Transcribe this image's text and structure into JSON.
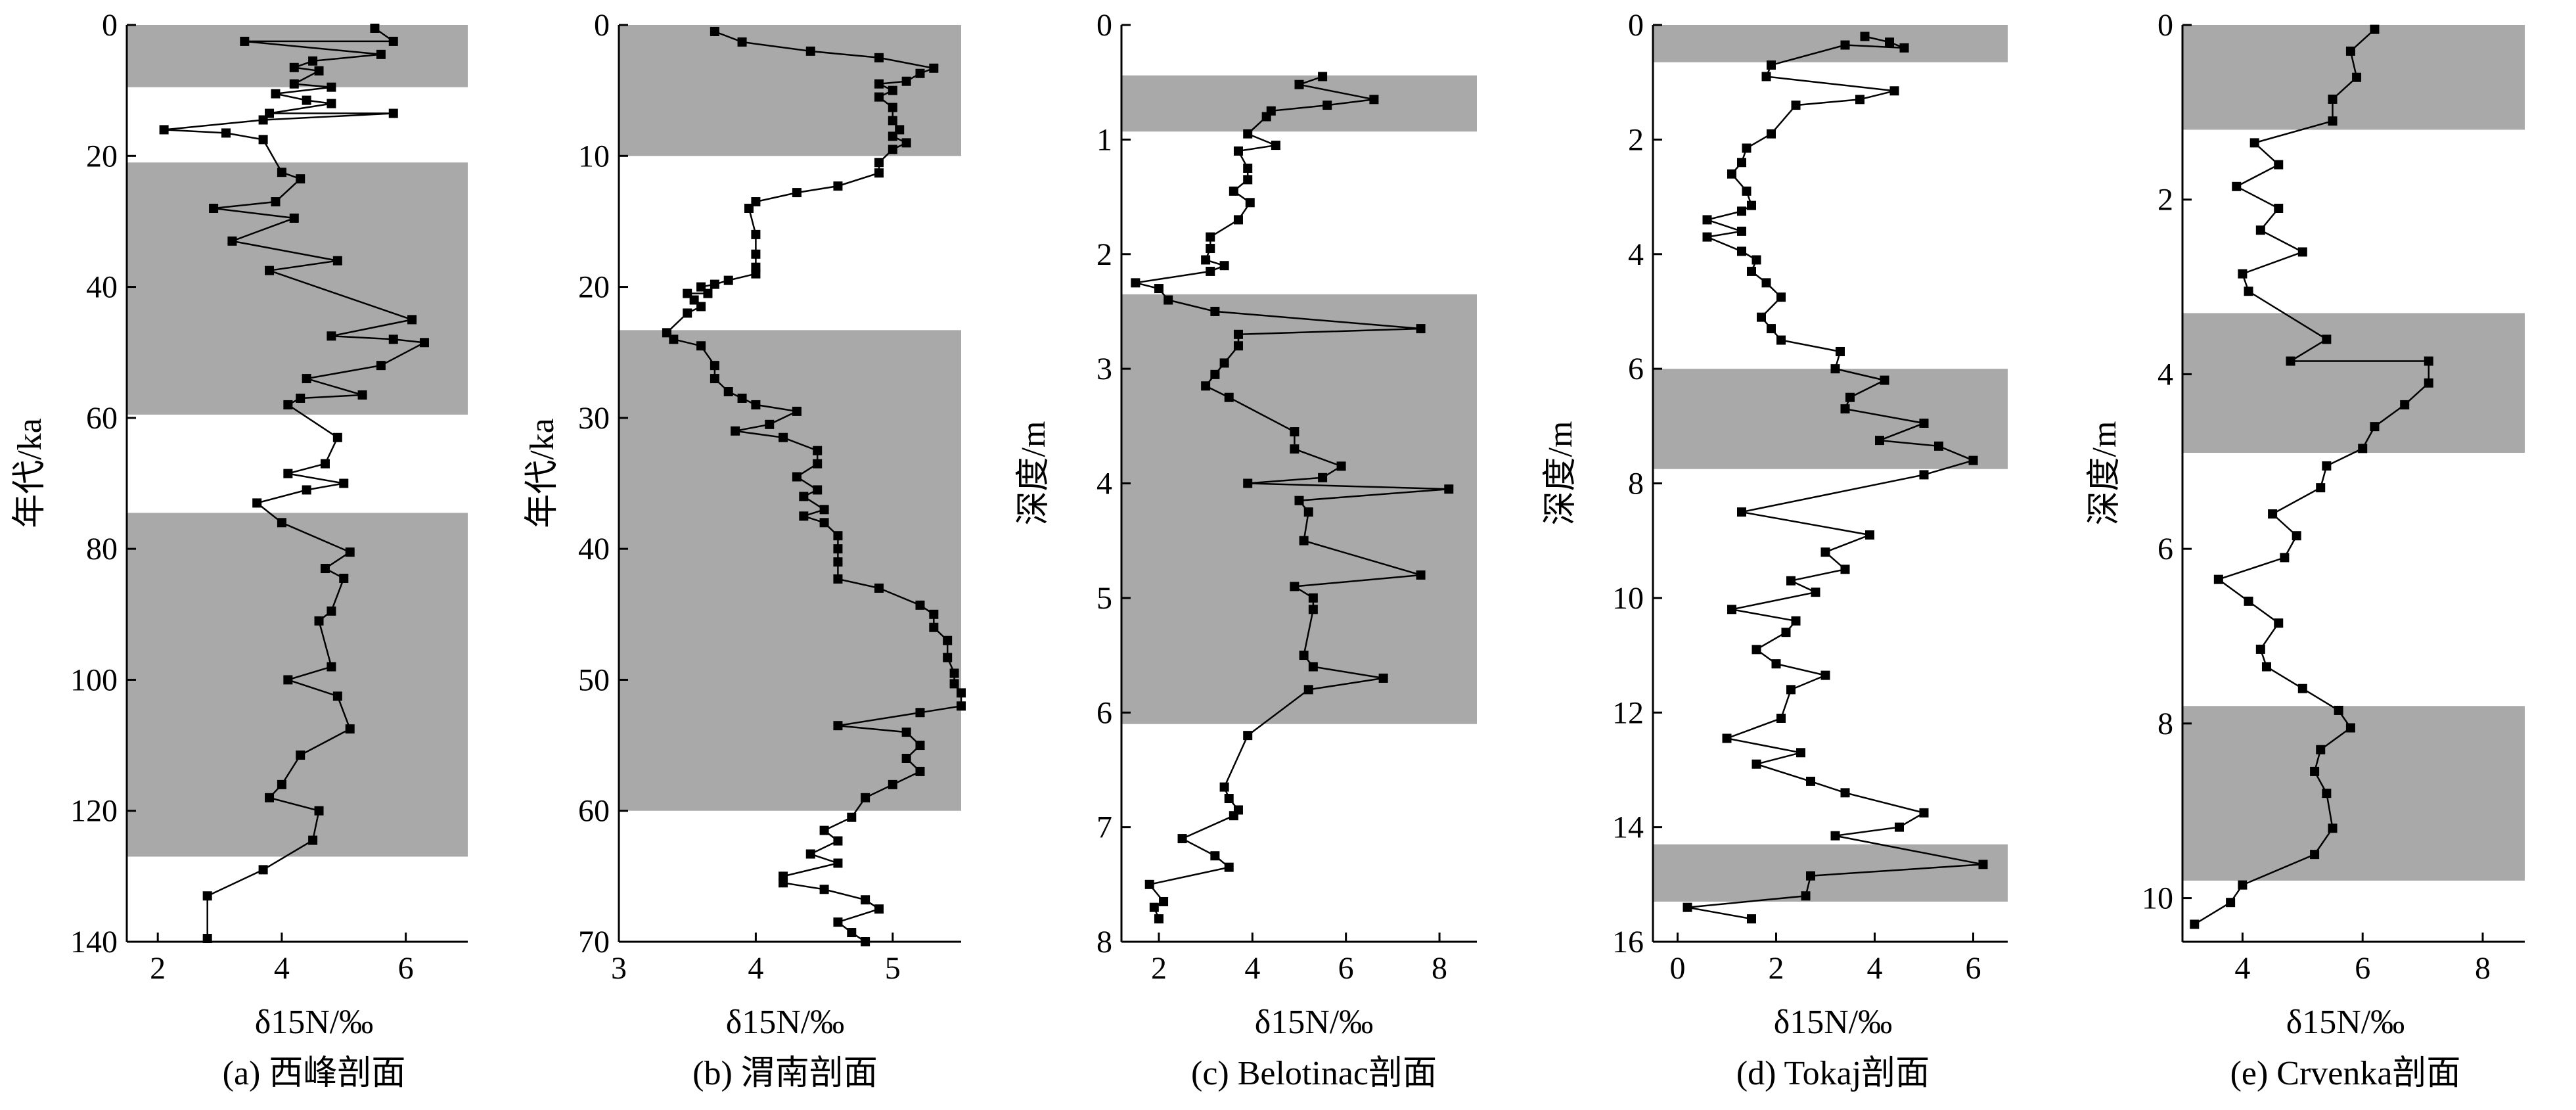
{
  "chart_data": [
    {
      "type": "line",
      "caption": "(a) 西峰剖面",
      "xlabel": "δ15N/‰",
      "ylabel": "年代/ka",
      "xlim": [
        1.5,
        7
      ],
      "ylim": [
        0,
        140
      ],
      "y_inverted": true,
      "xticks": [
        2,
        4,
        6
      ],
      "yticks": [
        0,
        20,
        40,
        60,
        80,
        100,
        120,
        140
      ],
      "shaded_bands": [
        [
          0,
          9.5
        ],
        [
          21,
          59.5
        ],
        [
          74.5,
          127
        ]
      ],
      "points": [
        [
          5.5,
          0.5
        ],
        [
          5.8,
          2.5
        ],
        [
          3.4,
          2.5
        ],
        [
          5.6,
          4.5
        ],
        [
          4.5,
          5.5
        ],
        [
          4.2,
          6.5
        ],
        [
          4.6,
          7
        ],
        [
          4.2,
          9
        ],
        [
          4.8,
          9.5
        ],
        [
          3.9,
          10.5
        ],
        [
          4.4,
          11.5
        ],
        [
          4.8,
          12
        ],
        [
          3.8,
          13.5
        ],
        [
          5.8,
          13.5
        ],
        [
          3.7,
          14.5
        ],
        [
          2.1,
          16
        ],
        [
          3.1,
          16.5
        ],
        [
          3.7,
          17.5
        ],
        [
          4.0,
          22.5
        ],
        [
          4.3,
          23.5
        ],
        [
          3.9,
          27
        ],
        [
          2.9,
          28
        ],
        [
          4.2,
          29.5
        ],
        [
          3.2,
          33
        ],
        [
          4.9,
          36
        ],
        [
          3.8,
          37.5
        ],
        [
          6.1,
          45
        ],
        [
          4.8,
          47.5
        ],
        [
          5.8,
          48
        ],
        [
          6.3,
          48.5
        ],
        [
          5.6,
          52
        ],
        [
          4.4,
          54
        ],
        [
          5.3,
          56.5
        ],
        [
          4.3,
          57
        ],
        [
          4.1,
          58
        ],
        [
          4.9,
          63
        ],
        [
          4.7,
          67
        ],
        [
          4.1,
          68.5
        ],
        [
          5.0,
          70
        ],
        [
          4.4,
          71
        ],
        [
          3.6,
          73
        ],
        [
          4.0,
          76
        ],
        [
          5.1,
          80.5
        ],
        [
          4.7,
          83
        ],
        [
          5.0,
          84.5
        ],
        [
          4.8,
          89.5
        ],
        [
          4.6,
          91
        ],
        [
          4.8,
          98
        ],
        [
          4.1,
          100
        ],
        [
          4.9,
          102.5
        ],
        [
          5.1,
          107.5
        ],
        [
          4.3,
          111.5
        ],
        [
          4.0,
          116
        ],
        [
          3.8,
          118
        ],
        [
          4.6,
          120
        ],
        [
          4.5,
          124.5
        ],
        [
          3.7,
          129
        ],
        [
          2.8,
          133
        ],
        [
          2.8,
          139.5
        ]
      ]
    },
    {
      "type": "line",
      "caption": "(b) 渭南剖面",
      "xlabel": "δ15N/‰",
      "ylabel": "年代/ka",
      "xlim": [
        3,
        5.5
      ],
      "ylim": [
        0,
        70
      ],
      "y_inverted": true,
      "xticks": [
        3,
        4,
        5
      ],
      "yticks": [
        0,
        10,
        20,
        30,
        40,
        50,
        60,
        70
      ],
      "shaded_bands": [
        [
          0,
          10
        ],
        [
          23.3,
          60
        ]
      ],
      "points": [
        [
          3.7,
          0.5
        ],
        [
          3.9,
          1.3
        ],
        [
          4.4,
          2
        ],
        [
          4.9,
          2.5
        ],
        [
          5.3,
          3.3
        ],
        [
          5.2,
          3.7
        ],
        [
          5.1,
          4.3
        ],
        [
          4.9,
          4.5
        ],
        [
          5.0,
          5
        ],
        [
          4.9,
          5.5
        ],
        [
          5.0,
          6.3
        ],
        [
          5.0,
          7.3
        ],
        [
          5.05,
          8
        ],
        [
          5.0,
          8.5
        ],
        [
          5.1,
          9
        ],
        [
          5.0,
          9.5
        ],
        [
          4.9,
          10.5
        ],
        [
          4.9,
          11.3
        ],
        [
          4.6,
          12.3
        ],
        [
          4.3,
          12.8
        ],
        [
          4.0,
          13.5
        ],
        [
          3.95,
          14
        ],
        [
          4.0,
          16
        ],
        [
          4.0,
          17.5
        ],
        [
          4.0,
          18.5
        ],
        [
          4.0,
          19
        ],
        [
          3.8,
          19.5
        ],
        [
          3.7,
          19.8
        ],
        [
          3.6,
          20
        ],
        [
          3.65,
          20.5
        ],
        [
          3.5,
          20.5
        ],
        [
          3.55,
          21
        ],
        [
          3.6,
          21.5
        ],
        [
          3.5,
          22
        ],
        [
          3.35,
          23.5
        ],
        [
          3.4,
          24
        ],
        [
          3.6,
          24.5
        ],
        [
          3.7,
          26
        ],
        [
          3.7,
          27
        ],
        [
          3.8,
          28
        ],
        [
          3.9,
          28.5
        ],
        [
          4.0,
          29
        ],
        [
          4.3,
          29.5
        ],
        [
          4.1,
          30.5
        ],
        [
          3.85,
          31
        ],
        [
          4.2,
          31.5
        ],
        [
          4.45,
          32.5
        ],
        [
          4.45,
          33.5
        ],
        [
          4.3,
          34.5
        ],
        [
          4.45,
          35.5
        ],
        [
          4.35,
          36
        ],
        [
          4.5,
          37
        ],
        [
          4.35,
          37.5
        ],
        [
          4.5,
          38
        ],
        [
          4.6,
          39
        ],
        [
          4.6,
          40
        ],
        [
          4.6,
          41
        ],
        [
          4.6,
          42.3
        ],
        [
          4.9,
          43
        ],
        [
          5.2,
          44.3
        ],
        [
          5.3,
          45
        ],
        [
          5.3,
          46
        ],
        [
          5.4,
          47
        ],
        [
          5.4,
          48.3
        ],
        [
          5.45,
          49.5
        ],
        [
          5.45,
          50.3
        ],
        [
          5.5,
          51
        ],
        [
          5.5,
          52
        ],
        [
          5.2,
          52.5
        ],
        [
          4.6,
          53.5
        ],
        [
          5.1,
          54
        ],
        [
          5.2,
          55
        ],
        [
          5.1,
          56
        ],
        [
          5.2,
          57
        ],
        [
          5.0,
          58
        ],
        [
          4.8,
          59
        ],
        [
          4.7,
          60.5
        ],
        [
          4.5,
          61.5
        ],
        [
          4.6,
          62.3
        ],
        [
          4.4,
          63.3
        ],
        [
          4.6,
          64
        ],
        [
          4.2,
          65
        ],
        [
          4.2,
          65.5
        ],
        [
          4.5,
          66
        ],
        [
          4.8,
          66.8
        ],
        [
          4.9,
          67.5
        ],
        [
          4.6,
          68.5
        ],
        [
          4.7,
          69.3
        ],
        [
          4.8,
          70
        ]
      ]
    },
    {
      "type": "line",
      "caption": "(c) Belotinac剖面",
      "xlabel": "δ15N/‰",
      "ylabel": "深度/m",
      "xlim": [
        1.2,
        8.8
      ],
      "ylim": [
        0,
        8
      ],
      "y_inverted": true,
      "xticks": [
        2,
        4,
        6,
        8
      ],
      "yticks": [
        0,
        1,
        2,
        3,
        4,
        5,
        6,
        7,
        8
      ],
      "shaded_bands": [
        [
          0.44,
          0.93
        ],
        [
          2.35,
          6.1
        ]
      ],
      "points": [
        [
          5.5,
          0.45
        ],
        [
          5.0,
          0.52
        ],
        [
          6.6,
          0.65
        ],
        [
          5.6,
          0.7
        ],
        [
          4.4,
          0.75
        ],
        [
          4.3,
          0.8
        ],
        [
          3.9,
          0.95
        ],
        [
          4.5,
          1.05
        ],
        [
          3.7,
          1.1
        ],
        [
          3.9,
          1.25
        ],
        [
          3.9,
          1.35
        ],
        [
          3.6,
          1.45
        ],
        [
          3.95,
          1.55
        ],
        [
          3.7,
          1.7
        ],
        [
          3.1,
          1.85
        ],
        [
          3.1,
          1.95
        ],
        [
          3.0,
          2.05
        ],
        [
          3.4,
          2.1
        ],
        [
          3.1,
          2.15
        ],
        [
          1.5,
          2.25
        ],
        [
          2.0,
          2.3
        ],
        [
          2.2,
          2.4
        ],
        [
          3.2,
          2.5
        ],
        [
          7.6,
          2.65
        ],
        [
          3.7,
          2.7
        ],
        [
          3.7,
          2.8
        ],
        [
          3.4,
          2.95
        ],
        [
          3.2,
          3.05
        ],
        [
          3.0,
          3.15
        ],
        [
          3.5,
          3.25
        ],
        [
          4.9,
          3.55
        ],
        [
          4.9,
          3.7
        ],
        [
          5.9,
          3.85
        ],
        [
          5.5,
          3.95
        ],
        [
          3.9,
          4.0
        ],
        [
          8.2,
          4.05
        ],
        [
          5.0,
          4.15
        ],
        [
          5.2,
          4.25
        ],
        [
          5.1,
          4.5
        ],
        [
          7.6,
          4.8
        ],
        [
          4.9,
          4.9
        ],
        [
          5.3,
          5.0
        ],
        [
          5.3,
          5.1
        ],
        [
          5.1,
          5.5
        ],
        [
          5.3,
          5.6
        ],
        [
          6.8,
          5.7
        ],
        [
          5.2,
          5.8
        ],
        [
          3.9,
          6.2
        ],
        [
          3.4,
          6.65
        ],
        [
          3.5,
          6.75
        ],
        [
          3.7,
          6.85
        ],
        [
          3.6,
          6.9
        ],
        [
          2.5,
          7.1
        ],
        [
          3.2,
          7.25
        ],
        [
          3.5,
          7.35
        ],
        [
          1.8,
          7.5
        ],
        [
          2.1,
          7.65
        ],
        [
          1.9,
          7.7
        ],
        [
          2.0,
          7.8
        ]
      ]
    },
    {
      "type": "line",
      "caption": "(d) Tokaj剖面",
      "xlabel": "δ15N/‰",
      "ylabel": "深度/m",
      "xlim": [
        -0.5,
        6.7
      ],
      "ylim": [
        0,
        16
      ],
      "y_inverted": true,
      "xticks": [
        0,
        2,
        4,
        6
      ],
      "yticks": [
        0,
        2,
        4,
        6,
        8,
        10,
        12,
        14,
        16
      ],
      "shaded_bands": [
        [
          0,
          0.65
        ],
        [
          6.0,
          7.75
        ],
        [
          14.3,
          15.3
        ]
      ],
      "points": [
        [
          3.8,
          0.2
        ],
        [
          4.3,
          0.3
        ],
        [
          4.6,
          0.4
        ],
        [
          3.4,
          0.35
        ],
        [
          1.9,
          0.7
        ],
        [
          1.8,
          0.9
        ],
        [
          4.4,
          1.15
        ],
        [
          3.7,
          1.3
        ],
        [
          2.4,
          1.4
        ],
        [
          1.9,
          1.9
        ],
        [
          1.4,
          2.15
        ],
        [
          1.3,
          2.4
        ],
        [
          1.1,
          2.6
        ],
        [
          1.4,
          2.9
        ],
        [
          1.5,
          3.15
        ],
        [
          1.3,
          3.25
        ],
        [
          0.6,
          3.4
        ],
        [
          1.3,
          3.6
        ],
        [
          0.6,
          3.7
        ],
        [
          1.3,
          3.95
        ],
        [
          1.6,
          4.1
        ],
        [
          1.5,
          4.3
        ],
        [
          1.8,
          4.5
        ],
        [
          2.1,
          4.75
        ],
        [
          1.7,
          5.1
        ],
        [
          1.9,
          5.3
        ],
        [
          2.1,
          5.5
        ],
        [
          3.3,
          5.7
        ],
        [
          3.2,
          6.0
        ],
        [
          4.2,
          6.2
        ],
        [
          3.5,
          6.5
        ],
        [
          3.4,
          6.7
        ],
        [
          5.0,
          6.95
        ],
        [
          4.1,
          7.25
        ],
        [
          5.3,
          7.35
        ],
        [
          6.0,
          7.6
        ],
        [
          5.0,
          7.85
        ],
        [
          1.3,
          8.5
        ],
        [
          3.9,
          8.9
        ],
        [
          3.0,
          9.2
        ],
        [
          3.4,
          9.5
        ],
        [
          2.3,
          9.7
        ],
        [
          2.8,
          9.9
        ],
        [
          1.1,
          10.2
        ],
        [
          2.4,
          10.4
        ],
        [
          2.2,
          10.6
        ],
        [
          1.6,
          10.9
        ],
        [
          2.0,
          11.15
        ],
        [
          3.0,
          11.35
        ],
        [
          2.3,
          11.6
        ],
        [
          2.1,
          12.1
        ],
        [
          1.0,
          12.45
        ],
        [
          2.5,
          12.7
        ],
        [
          1.6,
          12.9
        ],
        [
          2.7,
          13.2
        ],
        [
          3.4,
          13.4
        ],
        [
          5.0,
          13.75
        ],
        [
          4.5,
          14.0
        ],
        [
          3.2,
          14.15
        ],
        [
          6.2,
          14.65
        ],
        [
          2.7,
          14.85
        ],
        [
          2.6,
          15.2
        ],
        [
          0.2,
          15.4
        ],
        [
          1.5,
          15.6
        ]
      ]
    },
    {
      "type": "line",
      "caption": "(e) Crvenka剖面",
      "xlabel": "δ15N/‰",
      "ylabel": "深度/m",
      "xlim": [
        3,
        8.7
      ],
      "ylim": [
        0,
        10.5
      ],
      "y_inverted": true,
      "xticks": [
        4,
        6,
        8
      ],
      "yticks": [
        0,
        2,
        4,
        6,
        8,
        10
      ],
      "shaded_bands": [
        [
          0,
          1.2
        ],
        [
          3.3,
          4.9
        ],
        [
          7.8,
          9.8
        ]
      ],
      "points": [
        [
          6.2,
          0.05
        ],
        [
          5.8,
          0.3
        ],
        [
          5.9,
          0.6
        ],
        [
          5.5,
          0.85
        ],
        [
          5.5,
          1.1
        ],
        [
          4.2,
          1.35
        ],
        [
          4.6,
          1.6
        ],
        [
          3.9,
          1.85
        ],
        [
          4.6,
          2.1
        ],
        [
          4.3,
          2.35
        ],
        [
          5.0,
          2.6
        ],
        [
          4.0,
          2.85
        ],
        [
          4.1,
          3.05
        ],
        [
          5.4,
          3.6
        ],
        [
          4.8,
          3.85
        ],
        [
          7.1,
          3.85
        ],
        [
          7.1,
          4.1
        ],
        [
          6.7,
          4.35
        ],
        [
          6.2,
          4.6
        ],
        [
          6.0,
          4.85
        ],
        [
          5.4,
          5.05
        ],
        [
          5.3,
          5.3
        ],
        [
          4.5,
          5.6
        ],
        [
          4.9,
          5.85
        ],
        [
          4.7,
          6.1
        ],
        [
          3.6,
          6.35
        ],
        [
          4.1,
          6.6
        ],
        [
          4.6,
          6.85
        ],
        [
          4.3,
          7.15
        ],
        [
          4.4,
          7.35
        ],
        [
          5.0,
          7.6
        ],
        [
          5.6,
          7.85
        ],
        [
          5.8,
          8.05
        ],
        [
          5.3,
          8.3
        ],
        [
          5.2,
          8.55
        ],
        [
          5.4,
          8.8
        ],
        [
          5.5,
          9.2
        ],
        [
          5.2,
          9.5
        ],
        [
          4.0,
          9.85
        ],
        [
          3.8,
          10.05
        ],
        [
          3.2,
          10.3
        ]
      ]
    }
  ]
}
